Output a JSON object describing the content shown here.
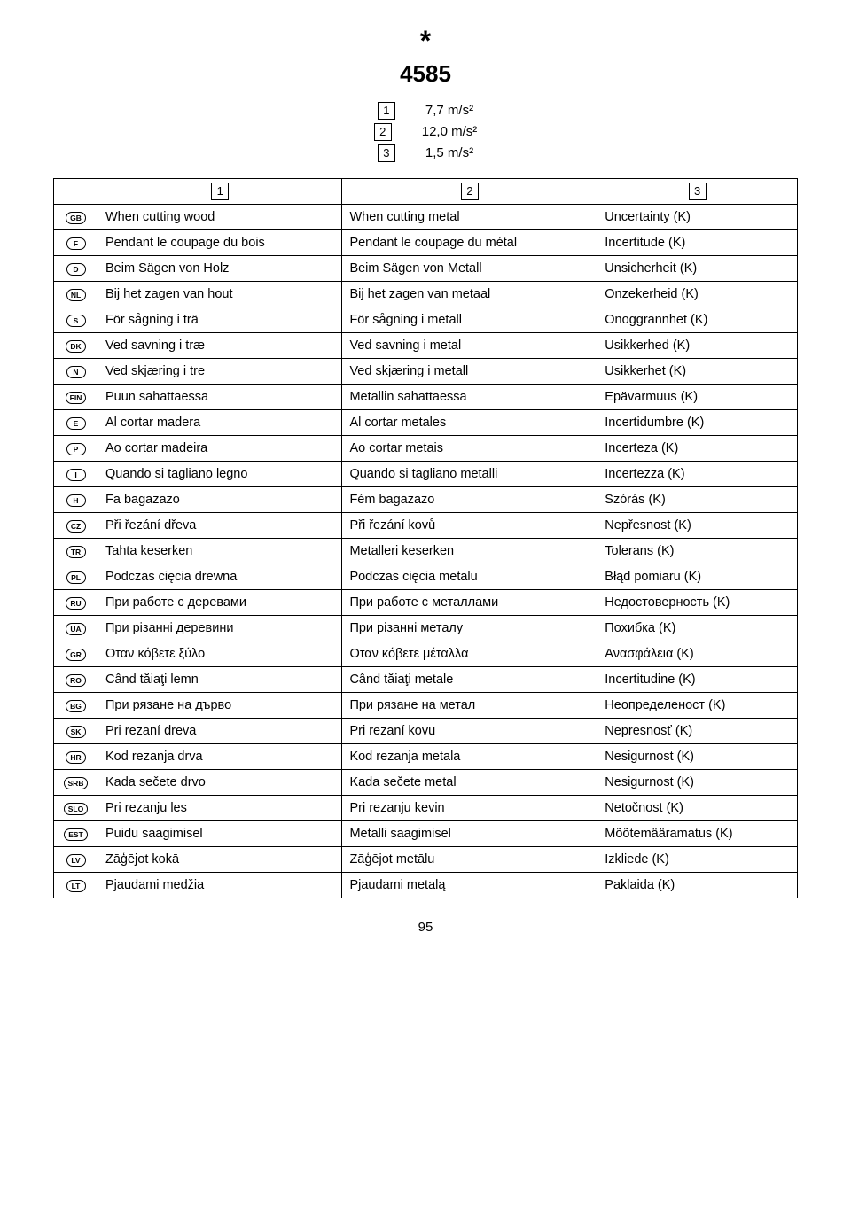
{
  "header": {
    "star": "*",
    "model": "4585",
    "specs": [
      {
        "num": "1",
        "value": "7,7 m/s²"
      },
      {
        "num": "2",
        "value": "12,0 m/s²"
      },
      {
        "num": "3",
        "value": "1,5 m/s²"
      }
    ]
  },
  "table": {
    "col_headers": [
      "1",
      "2",
      "3"
    ],
    "rows": [
      {
        "code": "GB",
        "c1": "When cutting wood",
        "c2": "When cutting metal",
        "c3": "Uncertainty (K)"
      },
      {
        "code": "F",
        "c1": "Pendant le coupage du bois",
        "c2": "Pendant le coupage du métal",
        "c3": "Incertitude (K)"
      },
      {
        "code": "D",
        "c1": "Beim Sägen von Holz",
        "c2": "Beim Sägen von Metall",
        "c3": "Unsicherheit (K)"
      },
      {
        "code": "NL",
        "c1": "Bij het zagen van hout",
        "c2": "Bij het zagen van metaal",
        "c3": "Onzekerheid (K)"
      },
      {
        "code": "S",
        "c1": "För sågning i trä",
        "c2": "För sågning i metall",
        "c3": "Onoggrannhet (K)"
      },
      {
        "code": "DK",
        "c1": "Ved savning i træ",
        "c2": "Ved savning i metal",
        "c3": "Usikkerhed (K)"
      },
      {
        "code": "N",
        "c1": "Ved skjæring i tre",
        "c2": "Ved skjæring i metall",
        "c3": "Usikkerhet (K)"
      },
      {
        "code": "FIN",
        "c1": "Puun sahattaessa",
        "c2": "Metallin sahattaessa",
        "c3": "Epävarmuus (K)"
      },
      {
        "code": "E",
        "c1": "Al cortar madera",
        "c2": "Al cortar metales",
        "c3": "Incertidumbre (K)"
      },
      {
        "code": "P",
        "c1": "Ao cortar madeira",
        "c2": "Ao cortar metais",
        "c3": "Incerteza (K)"
      },
      {
        "code": "I",
        "c1": "Quando si tagliano legno",
        "c2": "Quando si tagliano metalli",
        "c3": "Incertezza (K)"
      },
      {
        "code": "H",
        "c1": "Fa bagazazo",
        "c2": "Fém bagazazo",
        "c3": "Szórás (K)"
      },
      {
        "code": "CZ",
        "c1": "Při řezání dřeva",
        "c2": "Při řezání kovů",
        "c3": "Nepřesnost (K)"
      },
      {
        "code": "TR",
        "c1": "Tahta keserken",
        "c2": "Metalleri keserken",
        "c3": "Tolerans (K)"
      },
      {
        "code": "PL",
        "c1": "Podczas cięcia drewna",
        "c2": "Podczas cięcia metalu",
        "c3": "Błąd pomiaru (K)"
      },
      {
        "code": "RU",
        "c1": "При работе с деревами",
        "c2": "При работе с металлами",
        "c3": "Недостоверность (K)"
      },
      {
        "code": "UA",
        "c1": "При різанні деревини",
        "c2": "При різанні металу",
        "c3": "Похибка (K)"
      },
      {
        "code": "GR",
        "c1": "Οταν κόβετε ξύλο",
        "c2": "Οταν κόβετε μέταλλα",
        "c3": "Ανασφάλεια (K)"
      },
      {
        "code": "RO",
        "c1": "Când tăiaţi lemn",
        "c2": "Când tăiaţi metale",
        "c3": "Incertitudine (K)"
      },
      {
        "code": "BG",
        "c1": "При рязане на дърво",
        "c2": "При рязане на метал",
        "c3": "Неопределеност (K)"
      },
      {
        "code": "SK",
        "c1": "Pri rezaní dreva",
        "c2": "Pri rezaní kovu",
        "c3": "Nepresnosť (K)"
      },
      {
        "code": "HR",
        "c1": "Kod rezanja drva",
        "c2": "Kod rezanja metala",
        "c3": "Nesigurnost (K)"
      },
      {
        "code": "SRB",
        "c1": "Kada sečete drvo",
        "c2": "Kada sečete metal",
        "c3": "Nesigurnost (K)"
      },
      {
        "code": "SLO",
        "c1": "Pri rezanju les",
        "c2": "Pri rezanju kevin",
        "c3": "Netočnost (K)"
      },
      {
        "code": "EST",
        "c1": "Puidu saagimisel",
        "c2": "Metalli saagimisel",
        "c3": "Mõõtemääramatus (K)"
      },
      {
        "code": "LV",
        "c1": "Zāģējot kokā",
        "c2": "Zāģējot metālu",
        "c3": "Izkliede (K)"
      },
      {
        "code": "LT",
        "c1": "Pjaudami medžia",
        "c2": "Pjaudami metalą",
        "c3": "Paklaida (K)"
      }
    ]
  },
  "page_number": "95",
  "colors": {
    "text": "#000000",
    "background": "#ffffff",
    "border": "#000000"
  }
}
